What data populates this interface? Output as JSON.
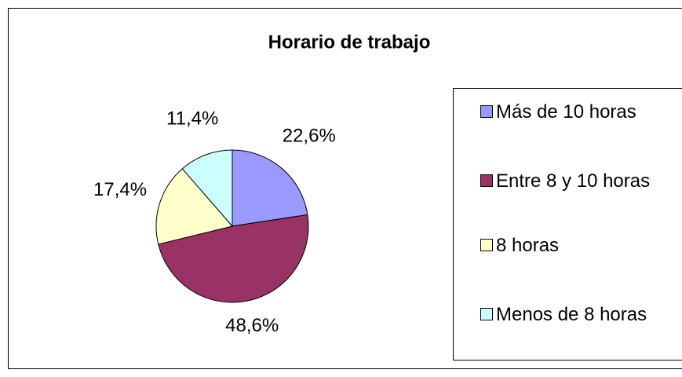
{
  "chart_data": {
    "type": "pie",
    "title": "Horario de trabajo",
    "categories": [
      "Más de 10 horas",
      "Entre 8 y 10 horas",
      "8 horas",
      "Menos de 8 horas"
    ],
    "values": [
      22.6,
      48.6,
      17.4,
      11.4
    ],
    "value_labels": [
      "22,6%",
      "48,6%",
      "17,4%",
      "11,4%"
    ],
    "colors": [
      "#9999ff",
      "#993366",
      "#ffffcc",
      "#ccffff"
    ],
    "legend": "right"
  }
}
